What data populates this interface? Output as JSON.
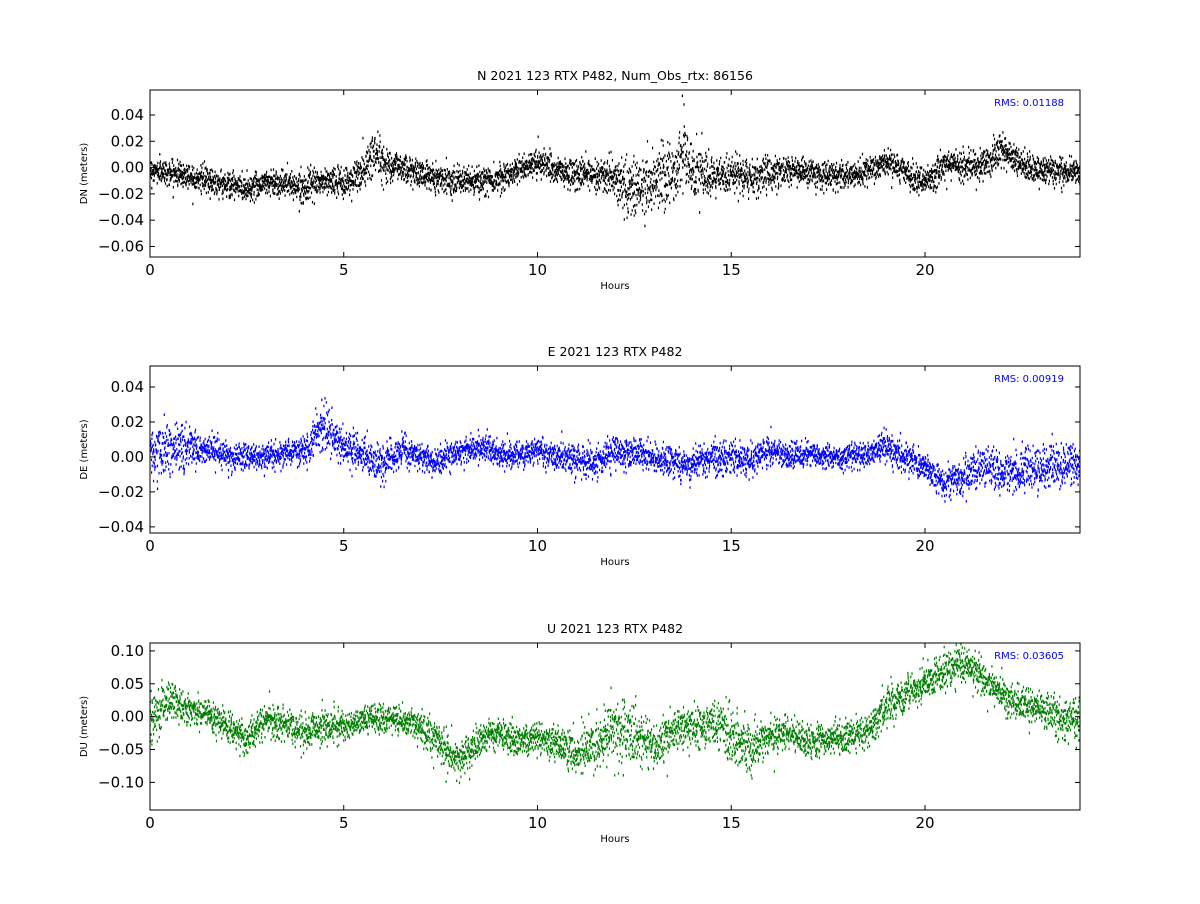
{
  "chart_data": [
    {
      "type": "scatter",
      "title": "N 2021 123 RTX  P482, Num_Obs_rtx: 86156",
      "xlabel": "Hours",
      "ylabel": "DN (meters)",
      "xlim": [
        0,
        24
      ],
      "ylim": [
        -0.068,
        0.059
      ],
      "xticks": [
        0,
        5,
        10,
        15,
        20
      ],
      "xtick_labels": [
        "0",
        "5",
        "10",
        "15",
        "20"
      ],
      "yticks": [
        -0.06,
        -0.04,
        -0.02,
        0.0,
        0.02,
        0.04
      ],
      "ytick_labels": [
        "−0.06",
        "−0.04",
        "−0.02",
        "0.00",
        "0.02",
        "0.04"
      ],
      "annotation": "RMS:  0.01188",
      "annotation_color": "#0000ff",
      "color": "#000000",
      "grid": false,
      "series": [
        {
          "x": [
            0,
            0.5,
            1,
            1.5,
            2,
            2.5,
            3,
            3.5,
            4,
            4.5,
            5,
            5.5,
            5.8,
            6,
            6.5,
            7,
            7.5,
            8,
            8.5,
            9,
            9.5,
            10,
            10.5,
            11,
            11.5,
            12,
            12.5,
            13,
            13.5,
            13.8,
            14,
            14.5,
            15,
            15.5,
            16,
            16.5,
            17,
            17.5,
            18,
            18.5,
            19,
            19.5,
            20,
            20.5,
            21,
            21.5,
            22,
            22.5,
            23,
            23.5,
            24
          ],
          "y": [
            -0.002,
            -0.004,
            -0.006,
            -0.01,
            -0.013,
            -0.016,
            -0.011,
            -0.012,
            -0.015,
            -0.01,
            -0.012,
            -0.004,
            0.012,
            0.004,
            0.0,
            -0.005,
            -0.008,
            -0.01,
            -0.011,
            -0.008,
            -0.002,
            0.005,
            -0.003,
            -0.006,
            -0.004,
            -0.009,
            -0.018,
            -0.01,
            -0.004,
            0.012,
            -0.002,
            -0.01,
            -0.004,
            -0.008,
            -0.004,
            -0.002,
            -0.004,
            -0.007,
            -0.006,
            -0.004,
            0.004,
            -0.004,
            -0.012,
            0.002,
            0.002,
            0.003,
            0.012,
            0.001,
            -0.002,
            -0.003,
            -0.004
          ],
          "spread": [
            0.008,
            0.008,
            0.009,
            0.009,
            0.009,
            0.009,
            0.009,
            0.009,
            0.009,
            0.009,
            0.01,
            0.014,
            0.018,
            0.012,
            0.01,
            0.009,
            0.009,
            0.009,
            0.009,
            0.009,
            0.009,
            0.009,
            0.01,
            0.011,
            0.011,
            0.013,
            0.02,
            0.022,
            0.024,
            0.026,
            0.018,
            0.014,
            0.012,
            0.012,
            0.012,
            0.01,
            0.009,
            0.009,
            0.009,
            0.009,
            0.009,
            0.009,
            0.009,
            0.01,
            0.011,
            0.011,
            0.012,
            0.01,
            0.009,
            0.009,
            0.009
          ]
        }
      ]
    },
    {
      "type": "scatter",
      "title": "E 2021 123 RTX  P482",
      "xlabel": "Hours",
      "ylabel": "DE (meters)",
      "xlim": [
        0,
        24
      ],
      "ylim": [
        -0.0435,
        0.052
      ],
      "xticks": [
        0,
        5,
        10,
        15,
        20
      ],
      "xtick_labels": [
        "0",
        "5",
        "10",
        "15",
        "20"
      ],
      "yticks": [
        -0.04,
        -0.02,
        0.0,
        0.02,
        0.04
      ],
      "ytick_labels": [
        "−0.04",
        "−0.02",
        "0.00",
        "0.02",
        "0.04"
      ],
      "annotation": "RMS:  0.00919",
      "annotation_color": "#0000ff",
      "color": "#0000ff",
      "grid": false,
      "series": [
        {
          "x": [
            0,
            0.5,
            1,
            1.5,
            2,
            2.5,
            3,
            3.5,
            4,
            4.5,
            5,
            5.5,
            6,
            6.5,
            7,
            7.5,
            8,
            8.5,
            9,
            9.5,
            10,
            10.5,
            11,
            11.5,
            12,
            12.5,
            13,
            13.5,
            14,
            14.5,
            15,
            15.5,
            16,
            16.5,
            17,
            17.5,
            18,
            18.5,
            19,
            19.5,
            20,
            20.5,
            21,
            21.5,
            22,
            22.5,
            23,
            23.5,
            24
          ],
          "y": [
            0.002,
            0.004,
            0.006,
            0.004,
            0.0,
            0.0,
            0.0,
            0.002,
            0.004,
            0.018,
            0.005,
            0.002,
            -0.005,
            0.004,
            0.0,
            -0.003,
            0.004,
            0.006,
            0.002,
            0.0,
            0.003,
            0.0,
            -0.002,
            -0.003,
            0.004,
            0.002,
            0.0,
            -0.003,
            -0.004,
            0.0,
            0.0,
            -0.002,
            0.004,
            0.0,
            0.002,
            0.0,
            0.0,
            0.001,
            0.006,
            0.0,
            -0.006,
            -0.015,
            -0.012,
            -0.005,
            -0.008,
            -0.008,
            -0.006,
            -0.005,
            -0.004
          ],
          "spread": [
            0.014,
            0.012,
            0.01,
            0.008,
            0.007,
            0.007,
            0.007,
            0.007,
            0.008,
            0.012,
            0.009,
            0.009,
            0.011,
            0.008,
            0.007,
            0.007,
            0.007,
            0.007,
            0.007,
            0.007,
            0.007,
            0.007,
            0.008,
            0.008,
            0.008,
            0.008,
            0.007,
            0.007,
            0.008,
            0.008,
            0.008,
            0.008,
            0.008,
            0.007,
            0.006,
            0.006,
            0.006,
            0.006,
            0.009,
            0.008,
            0.008,
            0.008,
            0.01,
            0.011,
            0.011,
            0.011,
            0.011,
            0.011,
            0.011
          ]
        }
      ]
    },
    {
      "type": "scatter",
      "title": "U 2021 123 RTX  P482",
      "xlabel": "Hours",
      "ylabel": "DU (meters)",
      "xlim": [
        0,
        24
      ],
      "ylim": [
        -0.142,
        0.112
      ],
      "xticks": [
        0,
        5,
        10,
        15,
        20
      ],
      "xtick_labels": [
        "0",
        "5",
        "10",
        "15",
        "20"
      ],
      "yticks": [
        -0.1,
        -0.05,
        0.0,
        0.05,
        0.1
      ],
      "ytick_labels": [
        "−0.10",
        "−0.05",
        "0.00",
        "0.05",
        "0.10"
      ],
      "annotation": "RMS:  0.03605",
      "annotation_color": "#0000ff",
      "color": "#008000",
      "grid": false,
      "series": [
        {
          "x": [
            0,
            0.5,
            1,
            1.5,
            2,
            2.5,
            3,
            3.5,
            4,
            4.5,
            5,
            5.5,
            6,
            6.5,
            7,
            7.5,
            8,
            8.5,
            9,
            9.5,
            10,
            10.5,
            11,
            11.5,
            12,
            12.5,
            13,
            13.5,
            14,
            14.5,
            15,
            15.5,
            16,
            16.5,
            17,
            17.5,
            18,
            18.5,
            19,
            19.5,
            20,
            20.5,
            21,
            21.5,
            22,
            22.5,
            23,
            23.5,
            24
          ],
          "y": [
            -0.01,
            0.03,
            0.01,
            0.005,
            -0.015,
            -0.035,
            -0.005,
            -0.015,
            -0.025,
            -0.015,
            -0.015,
            -0.005,
            -0.005,
            -0.005,
            -0.015,
            -0.045,
            -0.065,
            -0.035,
            -0.025,
            -0.035,
            -0.035,
            -0.04,
            -0.055,
            -0.04,
            -0.02,
            -0.025,
            -0.05,
            -0.02,
            -0.015,
            -0.01,
            -0.025,
            -0.05,
            -0.03,
            -0.025,
            -0.04,
            -0.035,
            -0.03,
            -0.025,
            0.015,
            0.035,
            0.05,
            0.07,
            0.08,
            0.06,
            0.03,
            0.02,
            0.01,
            0.0,
            -0.01
          ],
          "spread": [
            0.03,
            0.028,
            0.02,
            0.02,
            0.02,
            0.02,
            0.024,
            0.024,
            0.024,
            0.024,
            0.02,
            0.02,
            0.02,
            0.02,
            0.024,
            0.026,
            0.026,
            0.024,
            0.022,
            0.022,
            0.022,
            0.024,
            0.03,
            0.04,
            0.04,
            0.04,
            0.032,
            0.028,
            0.028,
            0.032,
            0.04,
            0.036,
            0.026,
            0.022,
            0.022,
            0.022,
            0.022,
            0.022,
            0.024,
            0.024,
            0.024,
            0.024,
            0.024,
            0.024,
            0.024,
            0.024,
            0.024,
            0.026,
            0.03
          ]
        }
      ]
    }
  ]
}
